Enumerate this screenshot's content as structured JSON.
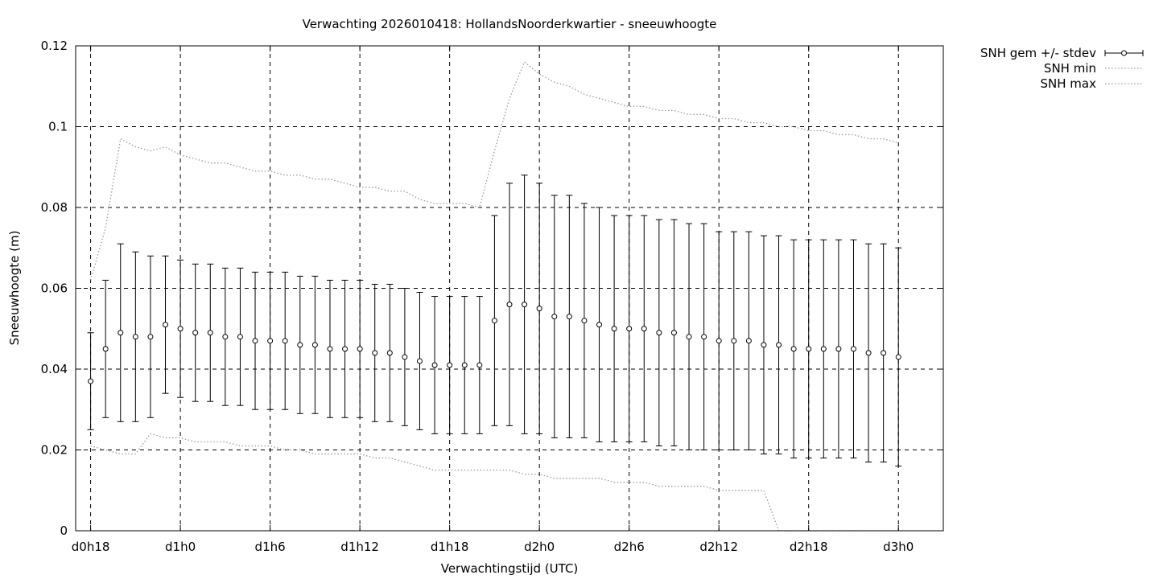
{
  "chart_data": {
    "type": "line",
    "title": "Verwachting 2026010418: HollandsNoorderkwartier - sneeuwhoogte",
    "xlabel": "Verwachtingstijd (UTC)",
    "ylabel": "Sneeuwhoogte (m)",
    "ylim": [
      0,
      0.12
    ],
    "xlim_hours": [
      -1,
      57
    ],
    "grid": true,
    "legend_position": "top-right-outside",
    "x_ticks": [
      {
        "hour": 0,
        "label": "d0h18"
      },
      {
        "hour": 6,
        "label": "d1h0"
      },
      {
        "hour": 12,
        "label": "d1h6"
      },
      {
        "hour": 18,
        "label": "d1h12"
      },
      {
        "hour": 24,
        "label": "d1h18"
      },
      {
        "hour": 30,
        "label": "d2h0"
      },
      {
        "hour": 36,
        "label": "d2h6"
      },
      {
        "hour": 42,
        "label": "d2h12"
      },
      {
        "hour": 48,
        "label": "d2h18"
      },
      {
        "hour": 54,
        "label": "d3h0"
      }
    ],
    "y_ticks": [
      {
        "value": 0,
        "label": "0"
      },
      {
        "value": 0.02,
        "label": "0.02"
      },
      {
        "value": 0.04,
        "label": "0.04"
      },
      {
        "value": 0.06,
        "label": "0.06"
      },
      {
        "value": 0.08,
        "label": "0.08"
      },
      {
        "value": 0.1,
        "label": "0.1"
      },
      {
        "value": 0.12,
        "label": "0.12"
      }
    ],
    "x_hours": [
      0,
      1,
      2,
      3,
      4,
      5,
      6,
      7,
      8,
      9,
      10,
      11,
      12,
      13,
      14,
      15,
      16,
      17,
      18,
      19,
      20,
      21,
      22,
      23,
      24,
      25,
      26,
      27,
      28,
      29,
      30,
      31,
      32,
      33,
      34,
      35,
      36,
      37,
      38,
      39,
      40,
      41,
      42,
      43,
      44,
      45,
      46,
      47,
      48,
      49,
      50,
      51,
      52,
      53,
      54
    ],
    "series": [
      {
        "name": "SNH gem +/- stdev",
        "style": "errorbars",
        "color": "#000000",
        "values": [
          0.037,
          0.045,
          0.049,
          0.048,
          0.048,
          0.051,
          0.05,
          0.049,
          0.049,
          0.048,
          0.048,
          0.047,
          0.047,
          0.047,
          0.046,
          0.046,
          0.045,
          0.045,
          0.045,
          0.044,
          0.044,
          0.043,
          0.042,
          0.041,
          0.041,
          0.041,
          0.041,
          0.052,
          0.056,
          0.056,
          0.055,
          0.053,
          0.053,
          0.052,
          0.051,
          0.05,
          0.05,
          0.05,
          0.049,
          0.049,
          0.048,
          0.048,
          0.047,
          0.047,
          0.047,
          0.046,
          0.046,
          0.045,
          0.045,
          0.045,
          0.045,
          0.045,
          0.044,
          0.044,
          0.043
        ],
        "low": [
          0.025,
          0.028,
          0.027,
          0.027,
          0.028,
          0.034,
          0.033,
          0.032,
          0.032,
          0.031,
          0.031,
          0.03,
          0.03,
          0.03,
          0.029,
          0.029,
          0.028,
          0.028,
          0.028,
          0.027,
          0.027,
          0.026,
          0.025,
          0.024,
          0.024,
          0.024,
          0.024,
          0.026,
          0.026,
          0.024,
          0.024,
          0.023,
          0.023,
          0.023,
          0.022,
          0.022,
          0.022,
          0.022,
          0.021,
          0.021,
          0.02,
          0.02,
          0.02,
          0.02,
          0.02,
          0.019,
          0.019,
          0.018,
          0.018,
          0.018,
          0.018,
          0.018,
          0.017,
          0.017,
          0.016
        ],
        "high": [
          0.049,
          0.062,
          0.071,
          0.069,
          0.068,
          0.068,
          0.067,
          0.066,
          0.066,
          0.065,
          0.065,
          0.064,
          0.064,
          0.064,
          0.063,
          0.063,
          0.062,
          0.062,
          0.062,
          0.061,
          0.061,
          0.06,
          0.059,
          0.058,
          0.058,
          0.058,
          0.058,
          0.078,
          0.086,
          0.088,
          0.086,
          0.083,
          0.083,
          0.081,
          0.08,
          0.078,
          0.078,
          0.078,
          0.077,
          0.077,
          0.076,
          0.076,
          0.074,
          0.074,
          0.074,
          0.073,
          0.073,
          0.072,
          0.072,
          0.072,
          0.072,
          0.072,
          0.071,
          0.071,
          0.07
        ]
      },
      {
        "name": "SNH min",
        "style": "dotted",
        "color": "#999999",
        "values": [
          0.021,
          0.02,
          0.019,
          0.019,
          0.024,
          0.023,
          0.023,
          0.022,
          0.022,
          0.022,
          0.021,
          0.021,
          0.021,
          0.02,
          0.02,
          0.019,
          0.019,
          0.019,
          0.019,
          0.018,
          0.018,
          0.017,
          0.016,
          0.015,
          0.015,
          0.015,
          0.015,
          0.015,
          0.015,
          0.014,
          0.014,
          0.013,
          0.013,
          0.013,
          0.013,
          0.012,
          0.012,
          0.012,
          0.011,
          0.011,
          0.011,
          0.011,
          0.01,
          0.01,
          0.01,
          0.01,
          0.0,
          0.0,
          0.0,
          0.0,
          0.0,
          0.0,
          0.0,
          0.0,
          0.0
        ]
      },
      {
        "name": "SNH max",
        "style": "dotted",
        "color": "#999999",
        "values": [
          0.062,
          0.075,
          0.097,
          0.095,
          0.094,
          0.095,
          0.093,
          0.092,
          0.091,
          0.091,
          0.09,
          0.089,
          0.089,
          0.088,
          0.088,
          0.087,
          0.087,
          0.086,
          0.085,
          0.085,
          0.084,
          0.084,
          0.082,
          0.081,
          0.081,
          0.081,
          0.08,
          0.094,
          0.107,
          0.116,
          0.113,
          0.111,
          0.11,
          0.108,
          0.107,
          0.106,
          0.105,
          0.105,
          0.104,
          0.104,
          0.103,
          0.103,
          0.102,
          0.102,
          0.101,
          0.101,
          0.1,
          0.1,
          0.099,
          0.099,
          0.098,
          0.098,
          0.097,
          0.097,
          0.096
        ]
      }
    ]
  }
}
